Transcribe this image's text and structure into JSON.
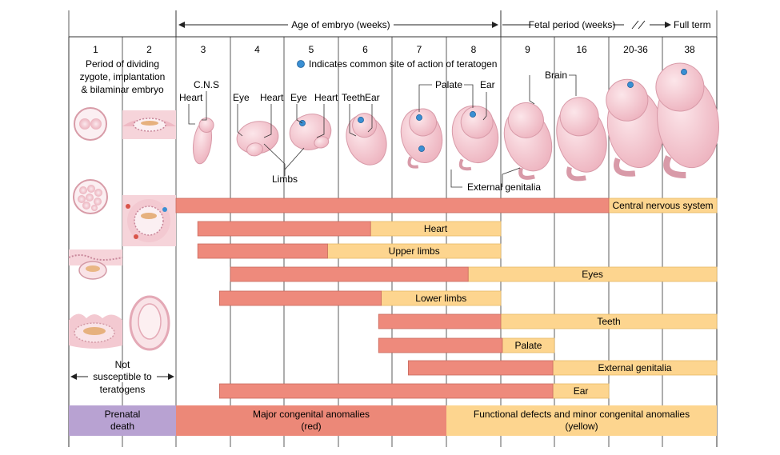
{
  "header": {
    "age_label": "Age of embryo (weeks)",
    "fetal_label": "Fetal period (weeks)",
    "full_term_label": "Full term"
  },
  "weeks": [
    "1",
    "2",
    "3",
    "4",
    "5",
    "6",
    "7",
    "8",
    "9",
    "16",
    "20-36",
    "38"
  ],
  "early_period_label": [
    "Period of dividing",
    "zygote, implantation",
    "& bilaminar embryo"
  ],
  "legend_note": "Indicates common site of action of teratogen",
  "structure_labels": {
    "cns": "C.N.S",
    "heart_w3": "Heart",
    "eye_w4": "Eye",
    "heart_w4": "Heart",
    "eye_w5": "Eye",
    "heart_w5": "Heart",
    "teeth": "Teeth",
    "ear_w6": "Ear",
    "palate": "Palate",
    "ear_w8": "Ear",
    "brain": "Brain",
    "limbs": "Limbs",
    "external_genitalia": "External genitalia"
  },
  "not_susceptible": [
    "Not",
    "susceptible to",
    "teratogens"
  ],
  "bars": [
    {
      "label": "Central nervous system",
      "red_start": 3,
      "red_end": 20,
      "yellow_end": 38
    },
    {
      "label": "Heart",
      "red_start": 3.4,
      "red_end": 6.6,
      "yellow_end": 9
    },
    {
      "label": "Upper limbs",
      "red_start": 3.4,
      "red_end": 5.8,
      "yellow_end": 9
    },
    {
      "label": "Eyes",
      "red_start": 4,
      "red_end": 8.4,
      "yellow_end": 38
    },
    {
      "label": "Lower limbs",
      "red_start": 3.8,
      "red_end": 6.8,
      "yellow_end": 9
    },
    {
      "label": "Teeth",
      "red_start": 6.75,
      "red_end": 9,
      "yellow_end": 38
    },
    {
      "label": "Palate",
      "red_start": 6.75,
      "red_end": 9.2,
      "yellow_end": 16
    },
    {
      "label": "External genitalia",
      "red_start": 7.3,
      "red_end": 15.8,
      "yellow_end": 38
    },
    {
      "label": "Ear",
      "red_start": 3.8,
      "red_end": 15.8,
      "yellow_end": 20
    }
  ],
  "footer": {
    "prenatal_death": [
      "Prenatal",
      "death"
    ],
    "major": [
      "Major congenital anomalies",
      "(red)"
    ],
    "functional": [
      "Functional defects and minor congenital anomalies",
      "(yellow)"
    ]
  },
  "colors": {
    "red": "#EE8A7C",
    "red_stroke": "#C96A5E",
    "yellow": "#FDD58F",
    "yellow_stroke": "#E7B865",
    "purple": "#B8A2D2",
    "red_footer": "#EC8878",
    "blue_dot": "#3A8FD3",
    "embryo": "#F6CCD3"
  }
}
